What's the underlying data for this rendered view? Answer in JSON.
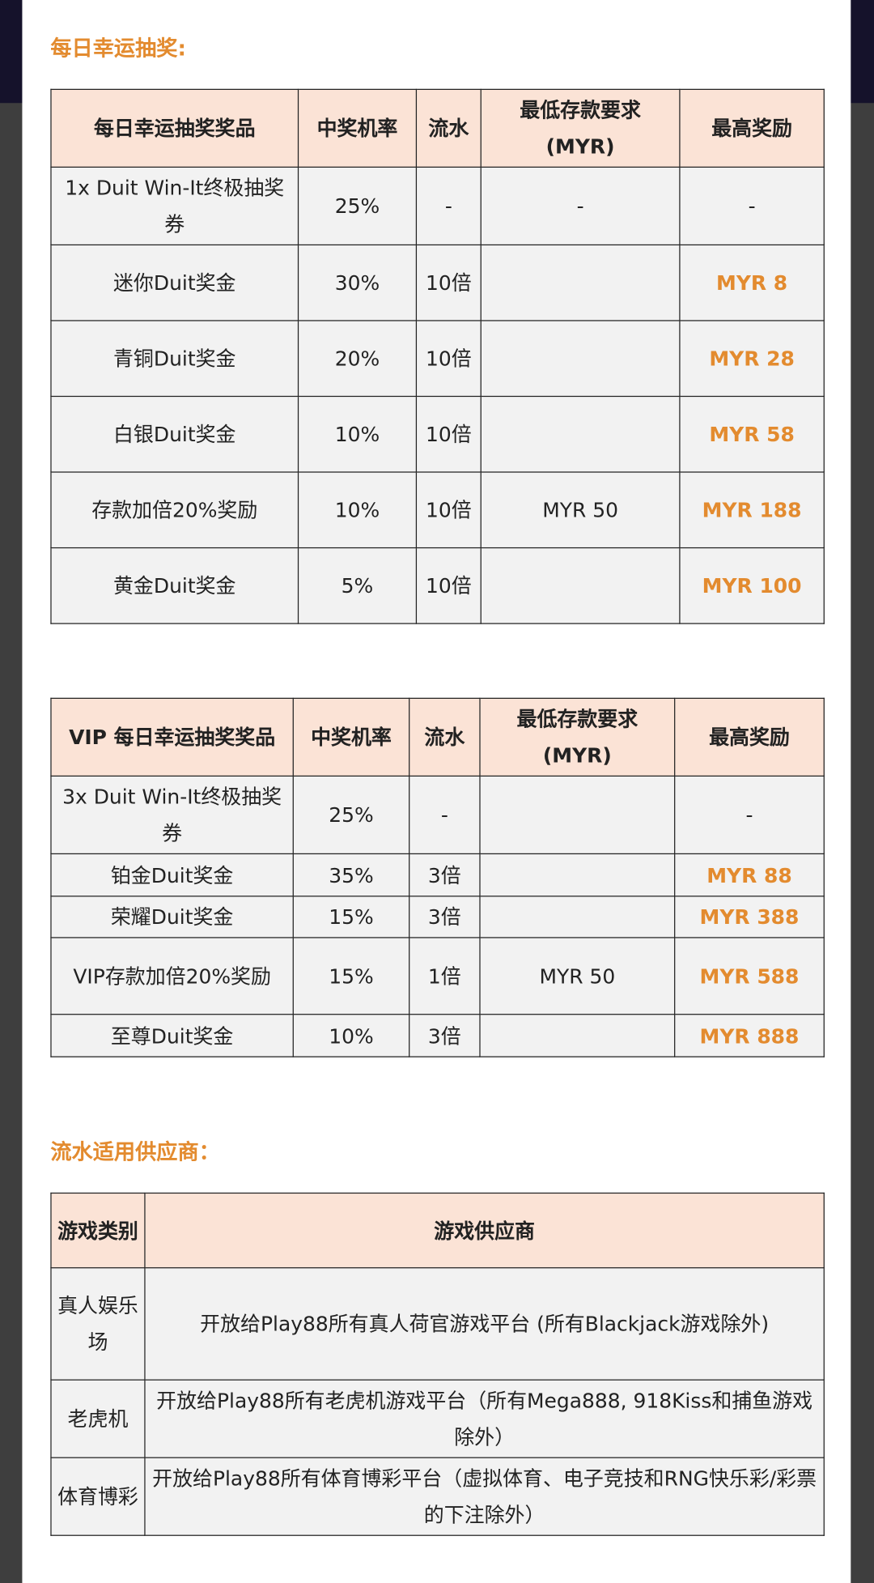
{
  "daily": {
    "heading": "每日幸运抽奖:",
    "table": {
      "header": [
        "每日幸运抽奖奖品",
        "中奖机率",
        "流水",
        "最低存款要求 (MYR)",
        "最高奖励"
      ],
      "rows": [
        [
          "1x Duit Win-It终极抽奖券",
          "25%",
          "-",
          "-",
          "-"
        ],
        [
          "迷你Duit奖金",
          "30%",
          "10倍",
          null,
          "MYR 8"
        ],
        [
          "青铜Duit奖金",
          "20%",
          "10倍",
          null,
          "MYR 28"
        ],
        [
          "白银Duit奖金",
          "10%",
          "10倍",
          null,
          "MYR 58"
        ],
        [
          "存款加倍20%奖励",
          "10%",
          "10倍",
          "MYR 50",
          "MYR 188"
        ],
        [
          "黄金Duit奖金",
          "5%",
          "10倍",
          null,
          "MYR 100"
        ]
      ]
    }
  },
  "vip": {
    "table": {
      "header": [
        "VIP 每日幸运抽奖奖品",
        "中奖机率",
        "流水",
        "最低存款要求 (MYR)",
        "最高奖励"
      ],
      "rows": [
        [
          "3x Duit Win-It终极抽奖券",
          "25%",
          "-",
          null,
          "-"
        ],
        [
          "铂金Duit奖金",
          "35%",
          "3倍",
          null,
          "MYR 88"
        ],
        [
          "荣耀Duit奖金",
          "15%",
          "3倍",
          null,
          "MYR 388"
        ],
        [
          "VIP存款加倍20%奖励",
          "15%",
          "1倍",
          "MYR 50",
          "MYR 588"
        ],
        [
          "至尊Duit奖金",
          "10%",
          "3倍",
          null,
          "MYR 888"
        ]
      ]
    }
  },
  "providers": {
    "heading": "流水适用供应商：",
    "table": {
      "header": [
        "游戏类别",
        "游戏供应商"
      ],
      "rows": [
        [
          "真人娱乐场",
          "开放给Play88所有真人荷官游戏平台 (所有Blackjack游戏除外)"
        ],
        [
          "老虎机",
          "开放给Play88所有老虎机游戏平台（所有Mega888, 918Kiss和捕鱼游戏除外）"
        ],
        [
          "体育博彩",
          "开放给Play88所有体育博彩平台（虚拟体育、电子竞技和RNG快乐彩/彩票的下注除外）"
        ]
      ]
    }
  }
}
